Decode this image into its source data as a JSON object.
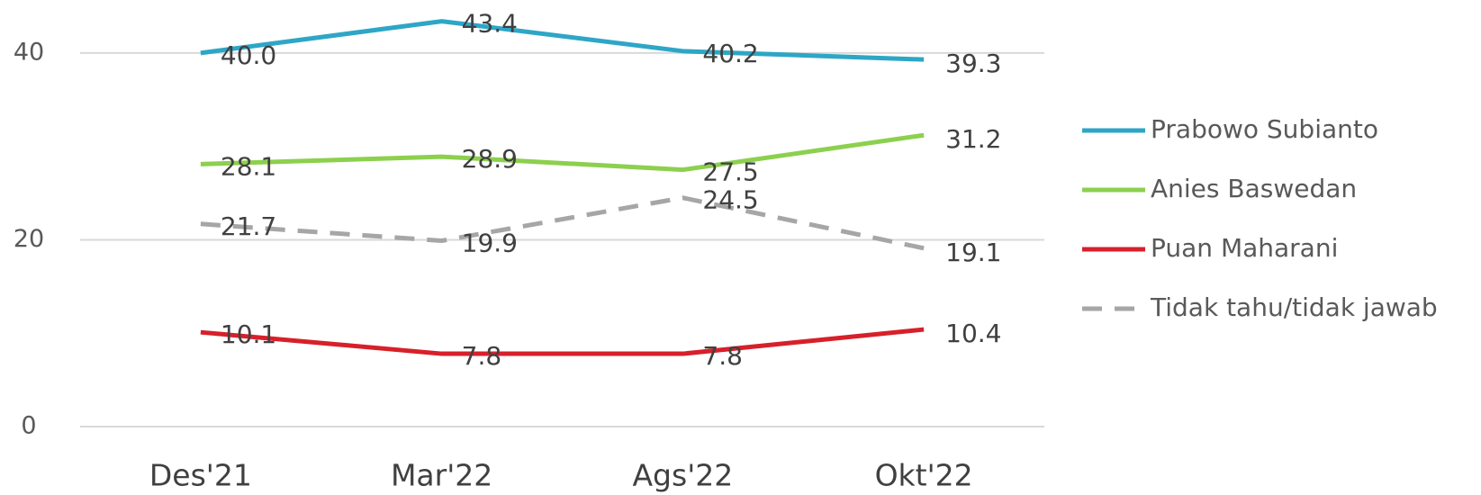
{
  "chart_data": {
    "type": "line",
    "categories": [
      "Des'21",
      "Mar'22",
      "Ags'22",
      "Okt'22"
    ],
    "series": [
      {
        "name": "Prabowo Subianto",
        "color": "#2ea6c6",
        "values": [
          40.0,
          43.4,
          40.2,
          39.3
        ],
        "value_labels": [
          "40.0",
          "43.4",
          "40.2",
          "39.3"
        ]
      },
      {
        "name": "Anies Baswedan",
        "color": "#8cd04e",
        "values": [
          28.1,
          28.9,
          27.5,
          31.2
        ],
        "value_labels": [
          "28.1",
          "28.9",
          "27.5",
          "31.2"
        ]
      },
      {
        "name": "Puan Maharani",
        "color": "#d7202a",
        "values": [
          10.1,
          7.8,
          7.8,
          10.4
        ],
        "value_labels": [
          "10.1",
          "7.8",
          "7.8",
          "10.4"
        ]
      },
      {
        "name": "Tidak tahu/tidak jawab",
        "color": "#a6a6a6",
        "dashed": true,
        "values": [
          21.7,
          19.9,
          24.5,
          19.1
        ],
        "value_labels": [
          "21.7",
          "19.9",
          "24.5",
          "19.1"
        ]
      }
    ],
    "ylim": [
      0,
      45
    ],
    "yticks": [
      0,
      20,
      40
    ],
    "grid": true,
    "legend": "right"
  }
}
